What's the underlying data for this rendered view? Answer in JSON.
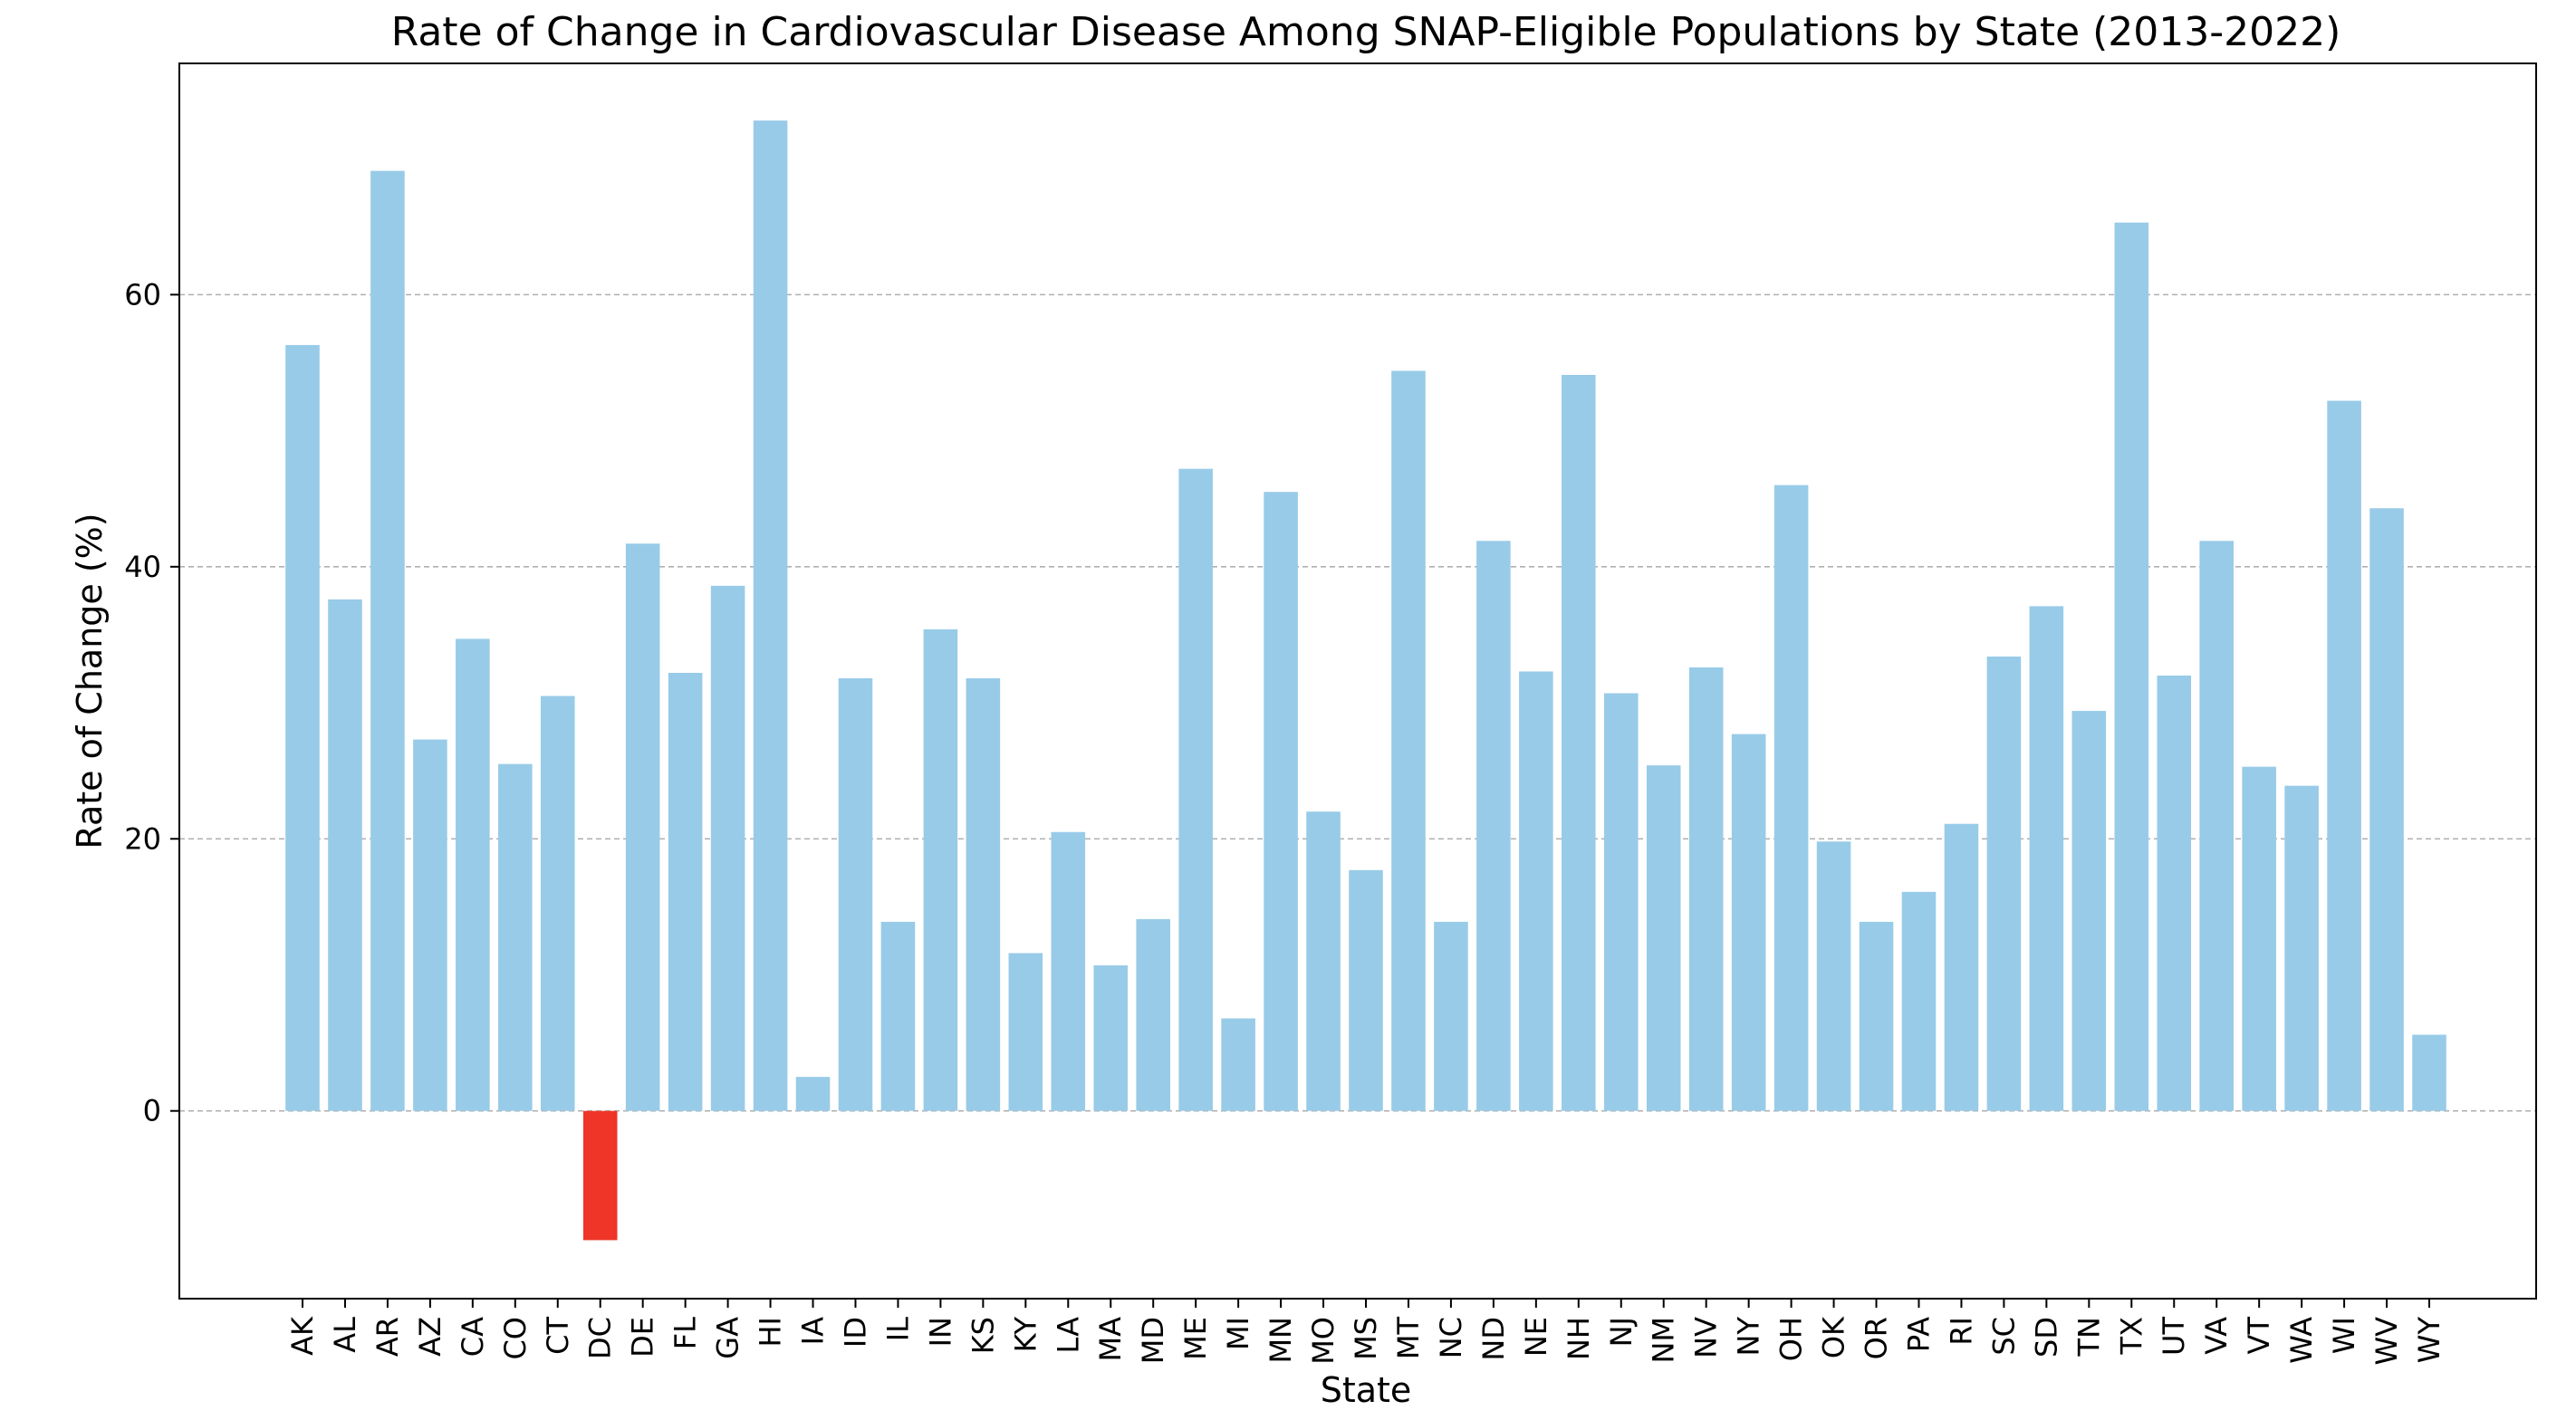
{
  "chart_data": {
    "type": "bar",
    "title": "Rate of Change in Cardiovascular Disease Among SNAP-Eligible Populations by State (2013-2022)",
    "xlabel": "State",
    "ylabel": "Rate of Change (%)",
    "ylim": [
      -13.8,
      77.0
    ],
    "yticks": [
      0,
      20,
      40,
      60
    ],
    "grid": "y-dashed",
    "bar_color": "#98cbe8",
    "negative_bar_color": "#ee3528",
    "categories": [
      "AK",
      "AL",
      "AR",
      "AZ",
      "CA",
      "CO",
      "CT",
      "DC",
      "DE",
      "FL",
      "GA",
      "HI",
      "IA",
      "ID",
      "IL",
      "IN",
      "KS",
      "KY",
      "LA",
      "MA",
      "MD",
      "ME",
      "MI",
      "MN",
      "MO",
      "MS",
      "MT",
      "NC",
      "ND",
      "NE",
      "NH",
      "NJ",
      "NM",
      "NV",
      "NY",
      "OH",
      "OK",
      "OR",
      "PA",
      "RI",
      "SC",
      "SD",
      "TN",
      "TX",
      "UT",
      "VA",
      "VT",
      "WA",
      "WI",
      "WV",
      "WY"
    ],
    "values": [
      56.3,
      37.6,
      69.1,
      27.3,
      34.7,
      25.5,
      30.5,
      -9.5,
      41.7,
      32.2,
      38.6,
      72.8,
      2.5,
      31.8,
      13.9,
      35.4,
      31.8,
      11.6,
      20.5,
      10.7,
      14.1,
      47.2,
      6.8,
      45.5,
      22.0,
      17.7,
      54.4,
      13.9,
      41.9,
      32.3,
      54.1,
      30.7,
      25.4,
      32.6,
      27.7,
      46.0,
      19.8,
      13.9,
      16.1,
      21.1,
      33.4,
      37.1,
      29.4,
      65.3,
      32.0,
      41.9,
      25.3,
      23.9,
      52.2,
      44.3,
      5.6
    ]
  }
}
